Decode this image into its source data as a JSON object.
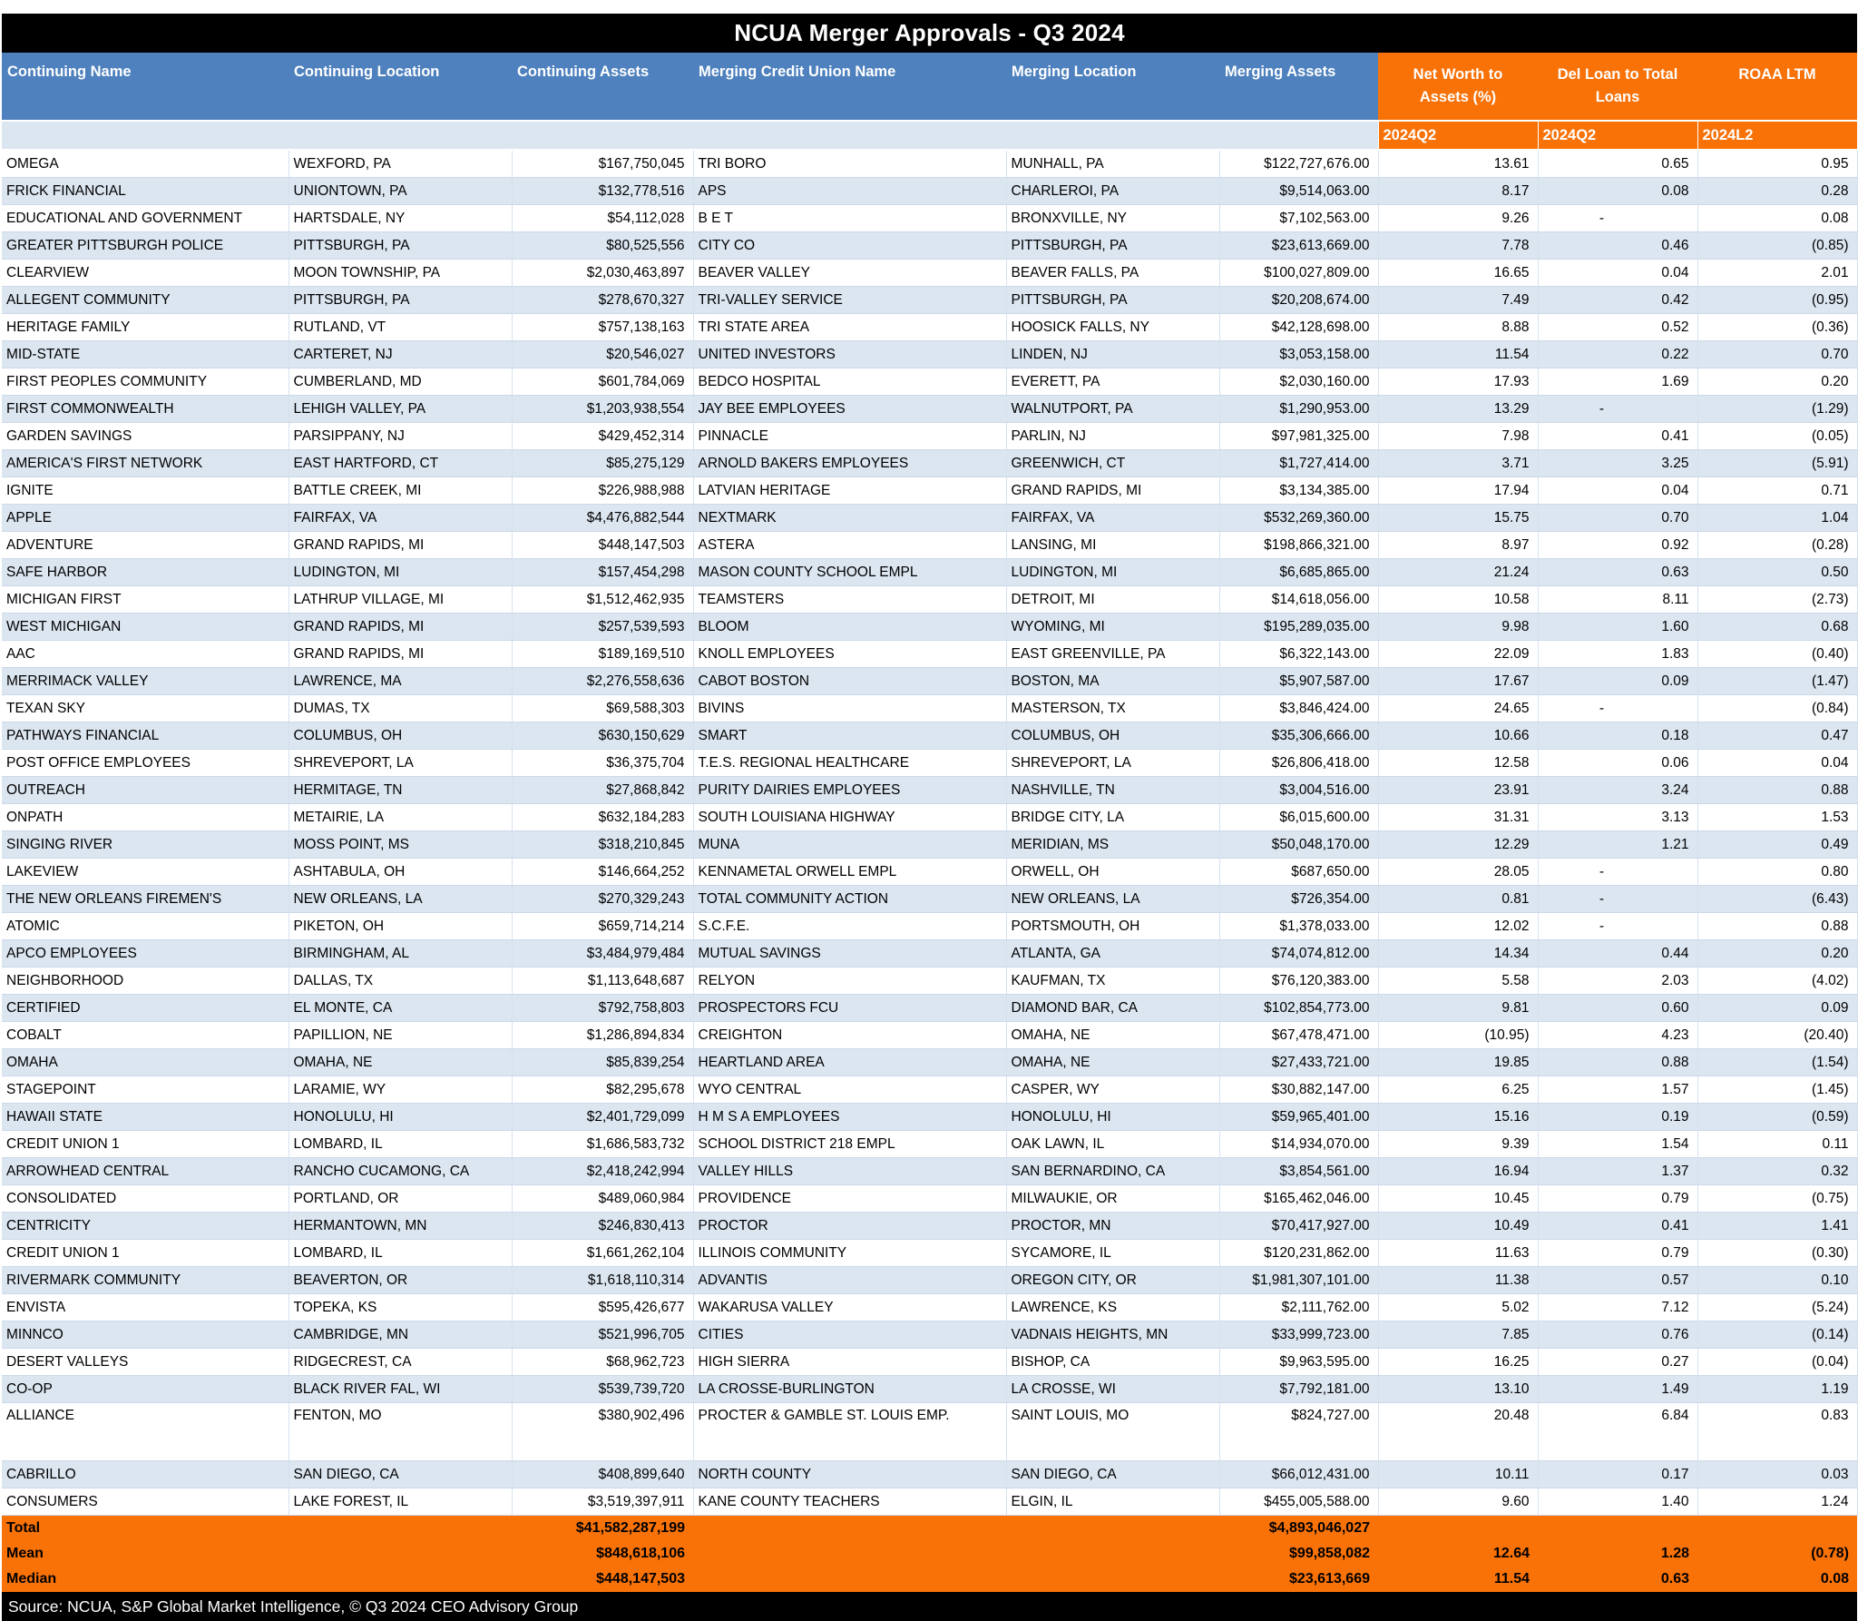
{
  "title": "NCUA Merger Approvals - Q3 2024",
  "colors": {
    "title_bg": "#000000",
    "header_blue": "#4E81BD",
    "stripe_blue": "#DCE6F1",
    "accent_orange": "#F87208",
    "text": "#000000",
    "header_text": "#FFFFFF"
  },
  "columns": [
    {
      "label": "Continuing Name",
      "label2": ""
    },
    {
      "label": "Continuing Location",
      "label2": ""
    },
    {
      "label": "Continuing Assets",
      "label2": ""
    },
    {
      "label": "Merging Credit Union Name",
      "label2": ""
    },
    {
      "label": "Merging Location",
      "label2": ""
    },
    {
      "label": "Merging Assets",
      "label2": ""
    },
    {
      "label": "Net Worth to",
      "label2": "Assets (%)"
    },
    {
      "label": "Del Loan to Total",
      "label2": "Loans"
    },
    {
      "label": "ROAA LTM",
      "label2": ""
    }
  ],
  "subheader": {
    "net_worth_period": "2024Q2",
    "del_loan_period": "2024Q2",
    "roaa_period": "2024L2"
  },
  "tall_row_index": 46,
  "rows": [
    [
      "OMEGA",
      "WEXFORD, PA",
      "$167,750,045",
      "TRI BORO",
      "MUNHALL, PA",
      "$122,727,676.00",
      "13.61",
      "0.65",
      "0.95"
    ],
    [
      "FRICK FINANCIAL",
      "UNIONTOWN, PA",
      "$132,778,516",
      "APS",
      "CHARLEROI, PA",
      "$9,514,063.00",
      "8.17",
      "0.08",
      "0.28"
    ],
    [
      "EDUCATIONAL AND GOVERNMENT",
      "HARTSDALE, NY",
      "$54,112,028",
      "B E T",
      "BRONXVILLE, NY",
      "$7,102,563.00",
      "9.26",
      "-",
      "0.08"
    ],
    [
      "GREATER PITTSBURGH POLICE",
      "PITTSBURGH, PA",
      "$80,525,556",
      "CITY CO",
      "PITTSBURGH, PA",
      "$23,613,669.00",
      "7.78",
      "0.46",
      "(0.85)"
    ],
    [
      "CLEARVIEW",
      "MOON TOWNSHIP, PA",
      "$2,030,463,897",
      "BEAVER VALLEY",
      "BEAVER FALLS, PA",
      "$100,027,809.00",
      "16.65",
      "0.04",
      "2.01"
    ],
    [
      "ALLEGENT COMMUNITY",
      "PITTSBURGH, PA",
      "$278,670,327",
      "TRI-VALLEY SERVICE",
      "PITTSBURGH, PA",
      "$20,208,674.00",
      "7.49",
      "0.42",
      "(0.95)"
    ],
    [
      "HERITAGE FAMILY",
      "RUTLAND, VT",
      "$757,138,163",
      "TRI STATE AREA",
      "HOOSICK FALLS, NY",
      "$42,128,698.00",
      "8.88",
      "0.52",
      "(0.36)"
    ],
    [
      "MID-STATE",
      "CARTERET, NJ",
      "$20,546,027",
      "UNITED INVESTORS",
      "LINDEN, NJ",
      "$3,053,158.00",
      "11.54",
      "0.22",
      "0.70"
    ],
    [
      "FIRST PEOPLES COMMUNITY",
      "CUMBERLAND, MD",
      "$601,784,069",
      "BEDCO HOSPITAL",
      "EVERETT, PA",
      "$2,030,160.00",
      "17.93",
      "1.69",
      "0.20"
    ],
    [
      "FIRST COMMONWEALTH",
      "LEHIGH VALLEY, PA",
      "$1,203,938,554",
      "JAY BEE EMPLOYEES",
      "WALNUTPORT, PA",
      "$1,290,953.00",
      "13.29",
      "-",
      "(1.29)"
    ],
    [
      "GARDEN SAVINGS",
      "PARSIPPANY, NJ",
      "$429,452,314",
      "PINNACLE",
      "PARLIN, NJ",
      "$97,981,325.00",
      "7.98",
      "0.41",
      "(0.05)"
    ],
    [
      "AMERICA'S FIRST NETWORK",
      "EAST HARTFORD, CT",
      "$85,275,129",
      "ARNOLD BAKERS EMPLOYEES",
      "GREENWICH, CT",
      "$1,727,414.00",
      "3.71",
      "3.25",
      "(5.91)"
    ],
    [
      "IGNITE",
      "BATTLE CREEK, MI",
      "$226,988,988",
      "LATVIAN HERITAGE",
      "GRAND RAPIDS, MI",
      "$3,134,385.00",
      "17.94",
      "0.04",
      "0.71"
    ],
    [
      "APPLE",
      "FAIRFAX, VA",
      "$4,476,882,544",
      "NEXTMARK",
      "FAIRFAX, VA",
      "$532,269,360.00",
      "15.75",
      "0.70",
      "1.04"
    ],
    [
      "ADVENTURE",
      "GRAND RAPIDS, MI",
      "$448,147,503",
      "ASTERA",
      "LANSING, MI",
      "$198,866,321.00",
      "8.97",
      "0.92",
      "(0.28)"
    ],
    [
      "SAFE HARBOR",
      "LUDINGTON, MI",
      "$157,454,298",
      "MASON COUNTY SCHOOL EMPL",
      "LUDINGTON, MI",
      "$6,685,865.00",
      "21.24",
      "0.63",
      "0.50"
    ],
    [
      "MICHIGAN FIRST",
      "LATHRUP VILLAGE, MI",
      "$1,512,462,935",
      "TEAMSTERS",
      "DETROIT, MI",
      "$14,618,056.00",
      "10.58",
      "8.11",
      "(2.73)"
    ],
    [
      "WEST MICHIGAN",
      "GRAND RAPIDS, MI",
      "$257,539,593",
      "BLOOM",
      "WYOMING, MI",
      "$195,289,035.00",
      "9.98",
      "1.60",
      "0.68"
    ],
    [
      "AAC",
      "GRAND RAPIDS, MI",
      "$189,169,510",
      "KNOLL EMPLOYEES",
      "EAST GREENVILLE, PA",
      "$6,322,143.00",
      "22.09",
      "1.83",
      "(0.40)"
    ],
    [
      "MERRIMACK VALLEY",
      "LAWRENCE, MA",
      "$2,276,558,636",
      "CABOT BOSTON",
      "BOSTON, MA",
      "$5,907,587.00",
      "17.67",
      "0.09",
      "(1.47)"
    ],
    [
      "TEXAN SKY",
      "DUMAS, TX",
      "$69,588,303",
      "BIVINS",
      "MASTERSON, TX",
      "$3,846,424.00",
      "24.65",
      "-",
      "(0.84)"
    ],
    [
      "PATHWAYS FINANCIAL",
      "COLUMBUS, OH",
      "$630,150,629",
      "SMART",
      "COLUMBUS, OH",
      "$35,306,666.00",
      "10.66",
      "0.18",
      "0.47"
    ],
    [
      "POST OFFICE EMPLOYEES",
      "SHREVEPORT, LA",
      "$36,375,704",
      "T.E.S. REGIONAL HEALTHCARE",
      "SHREVEPORT, LA",
      "$26,806,418.00",
      "12.58",
      "0.06",
      "0.04"
    ],
    [
      "OUTREACH",
      "HERMITAGE, TN",
      "$27,868,842",
      "PURITY DAIRIES EMPLOYEES",
      "NASHVILLE, TN",
      "$3,004,516.00",
      "23.91",
      "3.24",
      "0.88"
    ],
    [
      "ONPATH",
      "METAIRIE, LA",
      "$632,184,283",
      "SOUTH LOUISIANA HIGHWAY",
      "BRIDGE CITY, LA",
      "$6,015,600.00",
      "31.31",
      "3.13",
      "1.53"
    ],
    [
      "SINGING RIVER",
      "MOSS POINT, MS",
      "$318,210,845",
      "MUNA",
      "MERIDIAN, MS",
      "$50,048,170.00",
      "12.29",
      "1.21",
      "0.49"
    ],
    [
      "LAKEVIEW",
      "ASHTABULA, OH",
      "$146,664,252",
      "KENNAMETAL ORWELL EMPL",
      "ORWELL, OH",
      "$687,650.00",
      "28.05",
      "-",
      "0.80"
    ],
    [
      "THE NEW ORLEANS FIREMEN'S",
      "NEW ORLEANS, LA",
      "$270,329,243",
      "TOTAL COMMUNITY ACTION",
      "NEW ORLEANS, LA",
      "$726,354.00",
      "0.81",
      "-",
      "(6.43)"
    ],
    [
      "ATOMIC",
      "PIKETON, OH",
      "$659,714,214",
      "S.C.F.E.",
      "PORTSMOUTH, OH",
      "$1,378,033.00",
      "12.02",
      "-",
      "0.88"
    ],
    [
      "APCO EMPLOYEES",
      "BIRMINGHAM, AL",
      "$3,484,979,484",
      "MUTUAL SAVINGS",
      "ATLANTA, GA",
      "$74,074,812.00",
      "14.34",
      "0.44",
      "0.20"
    ],
    [
      "NEIGHBORHOOD",
      "DALLAS, TX",
      "$1,113,648,687",
      "RELYON",
      "KAUFMAN, TX",
      "$76,120,383.00",
      "5.58",
      "2.03",
      "(4.02)"
    ],
    [
      "CERTIFIED",
      "EL MONTE, CA",
      "$792,758,803",
      "PROSPECTORS FCU",
      "DIAMOND BAR, CA",
      "$102,854,773.00",
      "9.81",
      "0.60",
      "0.09"
    ],
    [
      "COBALT",
      "PAPILLION, NE",
      "$1,286,894,834",
      "CREIGHTON",
      "OMAHA, NE",
      "$67,478,471.00",
      "(10.95)",
      "4.23",
      "(20.40)"
    ],
    [
      "OMAHA",
      "OMAHA, NE",
      "$85,839,254",
      "HEARTLAND AREA",
      "OMAHA, NE",
      "$27,433,721.00",
      "19.85",
      "0.88",
      "(1.54)"
    ],
    [
      "STAGEPOINT",
      "LARAMIE, WY",
      "$82,295,678",
      "WYO CENTRAL",
      "CASPER, WY",
      "$30,882,147.00",
      "6.25",
      "1.57",
      "(1.45)"
    ],
    [
      "HAWAII STATE",
      "HONOLULU, HI",
      "$2,401,729,099",
      "H M S A EMPLOYEES",
      "HONOLULU, HI",
      "$59,965,401.00",
      "15.16",
      "0.19",
      "(0.59)"
    ],
    [
      "CREDIT UNION 1",
      "LOMBARD, IL",
      "$1,686,583,732",
      "SCHOOL DISTRICT 218 EMPL",
      "OAK LAWN, IL",
      "$14,934,070.00",
      "9.39",
      "1.54",
      "0.11"
    ],
    [
      "ARROWHEAD CENTRAL",
      "RANCHO CUCAMONG, CA",
      "$2,418,242,994",
      "VALLEY HILLS",
      "SAN BERNARDINO, CA",
      "$3,854,561.00",
      "16.94",
      "1.37",
      "0.32"
    ],
    [
      "CONSOLIDATED",
      "PORTLAND, OR",
      "$489,060,984",
      "PROVIDENCE",
      "MILWAUKIE, OR",
      "$165,462,046.00",
      "10.45",
      "0.79",
      "(0.75)"
    ],
    [
      "CENTRICITY",
      "HERMANTOWN, MN",
      "$246,830,413",
      "PROCTOR",
      "PROCTOR, MN",
      "$70,417,927.00",
      "10.49",
      "0.41",
      "1.41"
    ],
    [
      "CREDIT UNION 1",
      "LOMBARD, IL",
      "$1,661,262,104",
      "ILLINOIS COMMUNITY",
      "SYCAMORE, IL",
      "$120,231,862.00",
      "11.63",
      "0.79",
      "(0.30)"
    ],
    [
      "RIVERMARK COMMUNITY",
      "BEAVERTON, OR",
      "$1,618,110,314",
      "ADVANTIS",
      "OREGON CITY, OR",
      "$1,981,307,101.00",
      "11.38",
      "0.57",
      "0.10"
    ],
    [
      "ENVISTA",
      "TOPEKA, KS",
      "$595,426,677",
      "WAKARUSA VALLEY",
      "LAWRENCE, KS",
      "$2,111,762.00",
      "5.02",
      "7.12",
      "(5.24)"
    ],
    [
      "MINNCO",
      "CAMBRIDGE, MN",
      "$521,996,705",
      "CITIES",
      "VADNAIS HEIGHTS, MN",
      "$33,999,723.00",
      "7.85",
      "0.76",
      "(0.14)"
    ],
    [
      "DESERT VALLEYS",
      "RIDGECREST, CA",
      "$68,962,723",
      "HIGH SIERRA",
      "BISHOP, CA",
      "$9,963,595.00",
      "16.25",
      "0.27",
      "(0.04)"
    ],
    [
      "CO-OP",
      "BLACK RIVER FAL, WI",
      "$539,739,720",
      "LA CROSSE-BURLINGTON",
      "LA CROSSE, WI",
      "$7,792,181.00",
      "13.10",
      "1.49",
      "1.19"
    ],
    [
      "ALLIANCE",
      "FENTON, MO",
      "$380,902,496",
      "PROCTER & GAMBLE ST. LOUIS EMP.",
      "SAINT LOUIS, MO",
      "$824,727.00",
      "20.48",
      "6.84",
      "0.83"
    ],
    [
      "CABRILLO",
      "SAN DIEGO, CA",
      "$408,899,640",
      "NORTH COUNTY",
      "SAN DIEGO, CA",
      "$66,012,431.00",
      "10.11",
      "0.17",
      "0.03"
    ],
    [
      "CONSUMERS",
      "LAKE FOREST, IL",
      "$3,519,397,911",
      "KANE COUNTY TEACHERS",
      "ELGIN, IL",
      "$455,005,588.00",
      "9.60",
      "1.40",
      "1.24"
    ]
  ],
  "totals": [
    {
      "label": "Total",
      "continuing_assets": "$41,582,287,199",
      "merging_assets": "$4,893,046,027",
      "net_worth": "",
      "del_loan": "",
      "roaa": ""
    },
    {
      "label": "Mean",
      "continuing_assets": "$848,618,106",
      "merging_assets": "$99,858,082",
      "net_worth": "12.64",
      "del_loan": "1.28",
      "roaa": "(0.78)"
    },
    {
      "label": "Median",
      "continuing_assets": "$448,147,503",
      "merging_assets": "$23,613,669",
      "net_worth": "11.54",
      "del_loan": "0.63",
      "roaa": "0.08"
    }
  ],
  "source": "Source: NCUA, S&P Global Market Intelligence,  © Q3 2024 CEO Advisory Group"
}
